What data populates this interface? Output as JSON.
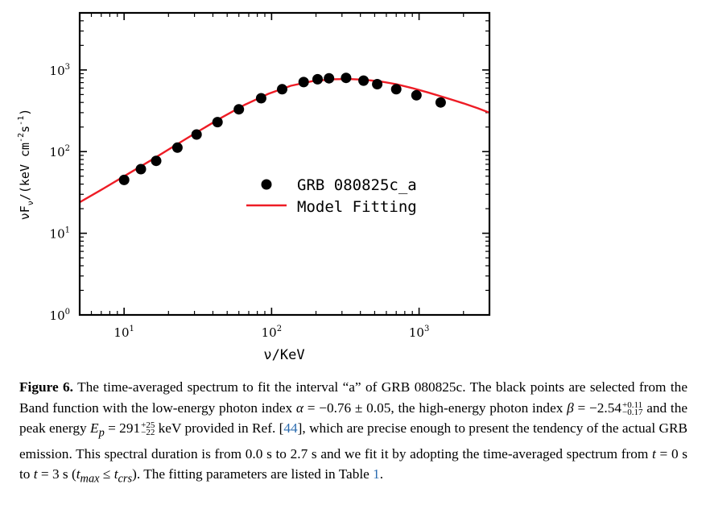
{
  "chart_data": {
    "type": "scatter",
    "xscale": "log",
    "yscale": "log",
    "xlim": [
      5,
      3000
    ],
    "ylim": [
      1,
      5000
    ],
    "xlabel": "ν/KeV",
    "ylabel": "νF_ν/(keV cm^-2 s^-1)",
    "x_ticks": [
      10,
      100,
      1000
    ],
    "y_ticks": [
      1,
      10,
      100,
      1000
    ],
    "legend_position": "center-right",
    "series": [
      {
        "name": "GRB 080825c_a",
        "kind": "points",
        "color": "#000000",
        "x": [
          10,
          13,
          16.5,
          23,
          31,
          43,
          60,
          85,
          118,
          165,
          205,
          245,
          320,
          420,
          520,
          700,
          960,
          1400
        ],
        "y": [
          45,
          61,
          77,
          112,
          162,
          230,
          330,
          450,
          580,
          710,
          770,
          790,
          800,
          740,
          670,
          580,
          490,
          400
        ]
      },
      {
        "name": "Model Fitting",
        "kind": "line",
        "color": "#ee1c25",
        "x": [
          5,
          7,
          10,
          15,
          22,
          32,
          46,
          66,
          95,
          135,
          190,
          260,
          330,
          420,
          540,
          700,
          900,
          1150,
          1500,
          2000,
          2500,
          3000
        ],
        "y": [
          24,
          34,
          50,
          77,
          118,
          178,
          262,
          375,
          510,
          640,
          730,
          770,
          775,
          760,
          725,
          670,
          600,
          530,
          460,
          390,
          340,
          300
        ]
      }
    ]
  },
  "caption": {
    "label": "Figure 6.",
    "t1": " The time-averaged spectrum to fit the interval “a” of GRB 080825c. The black points are selected from the Band function with the low-energy photon index ",
    "alpha_sym": "α",
    "alpha_val": " = −0.76 ± 0.05, the high-energy photon index ",
    "beta_sym": "β",
    "beta_val": " = −2.54",
    "beta_up": "+0.11",
    "beta_lo": "−0.17",
    "t2": " and the peak energy ",
    "ep_sym": "E",
    "ep_sub": "p",
    "ep_val": " = 291",
    "ep_up": "+25",
    "ep_lo": "−22",
    "t3": " keV provided in Ref. [",
    "ref": "44",
    "t4": "], which are precise enough to present the tendency of the actual GRB emission. This spectral duration is from 0.0 s to 2.7 s and we fit it by adopting the time-averaged spectrum from ",
    "t_sym1": "t",
    "t5": " = 0 s to ",
    "t_sym2": "t",
    "t6": " = 3 s (",
    "tmax_sym": "t",
    "tmax_sub": "max",
    "t7": " ≤ ",
    "tcrs_sym": "t",
    "tcrs_sub": "crs",
    "t8": "). The fitting parameters are listed in Table ",
    "table_ref": "1",
    "t9": "."
  }
}
